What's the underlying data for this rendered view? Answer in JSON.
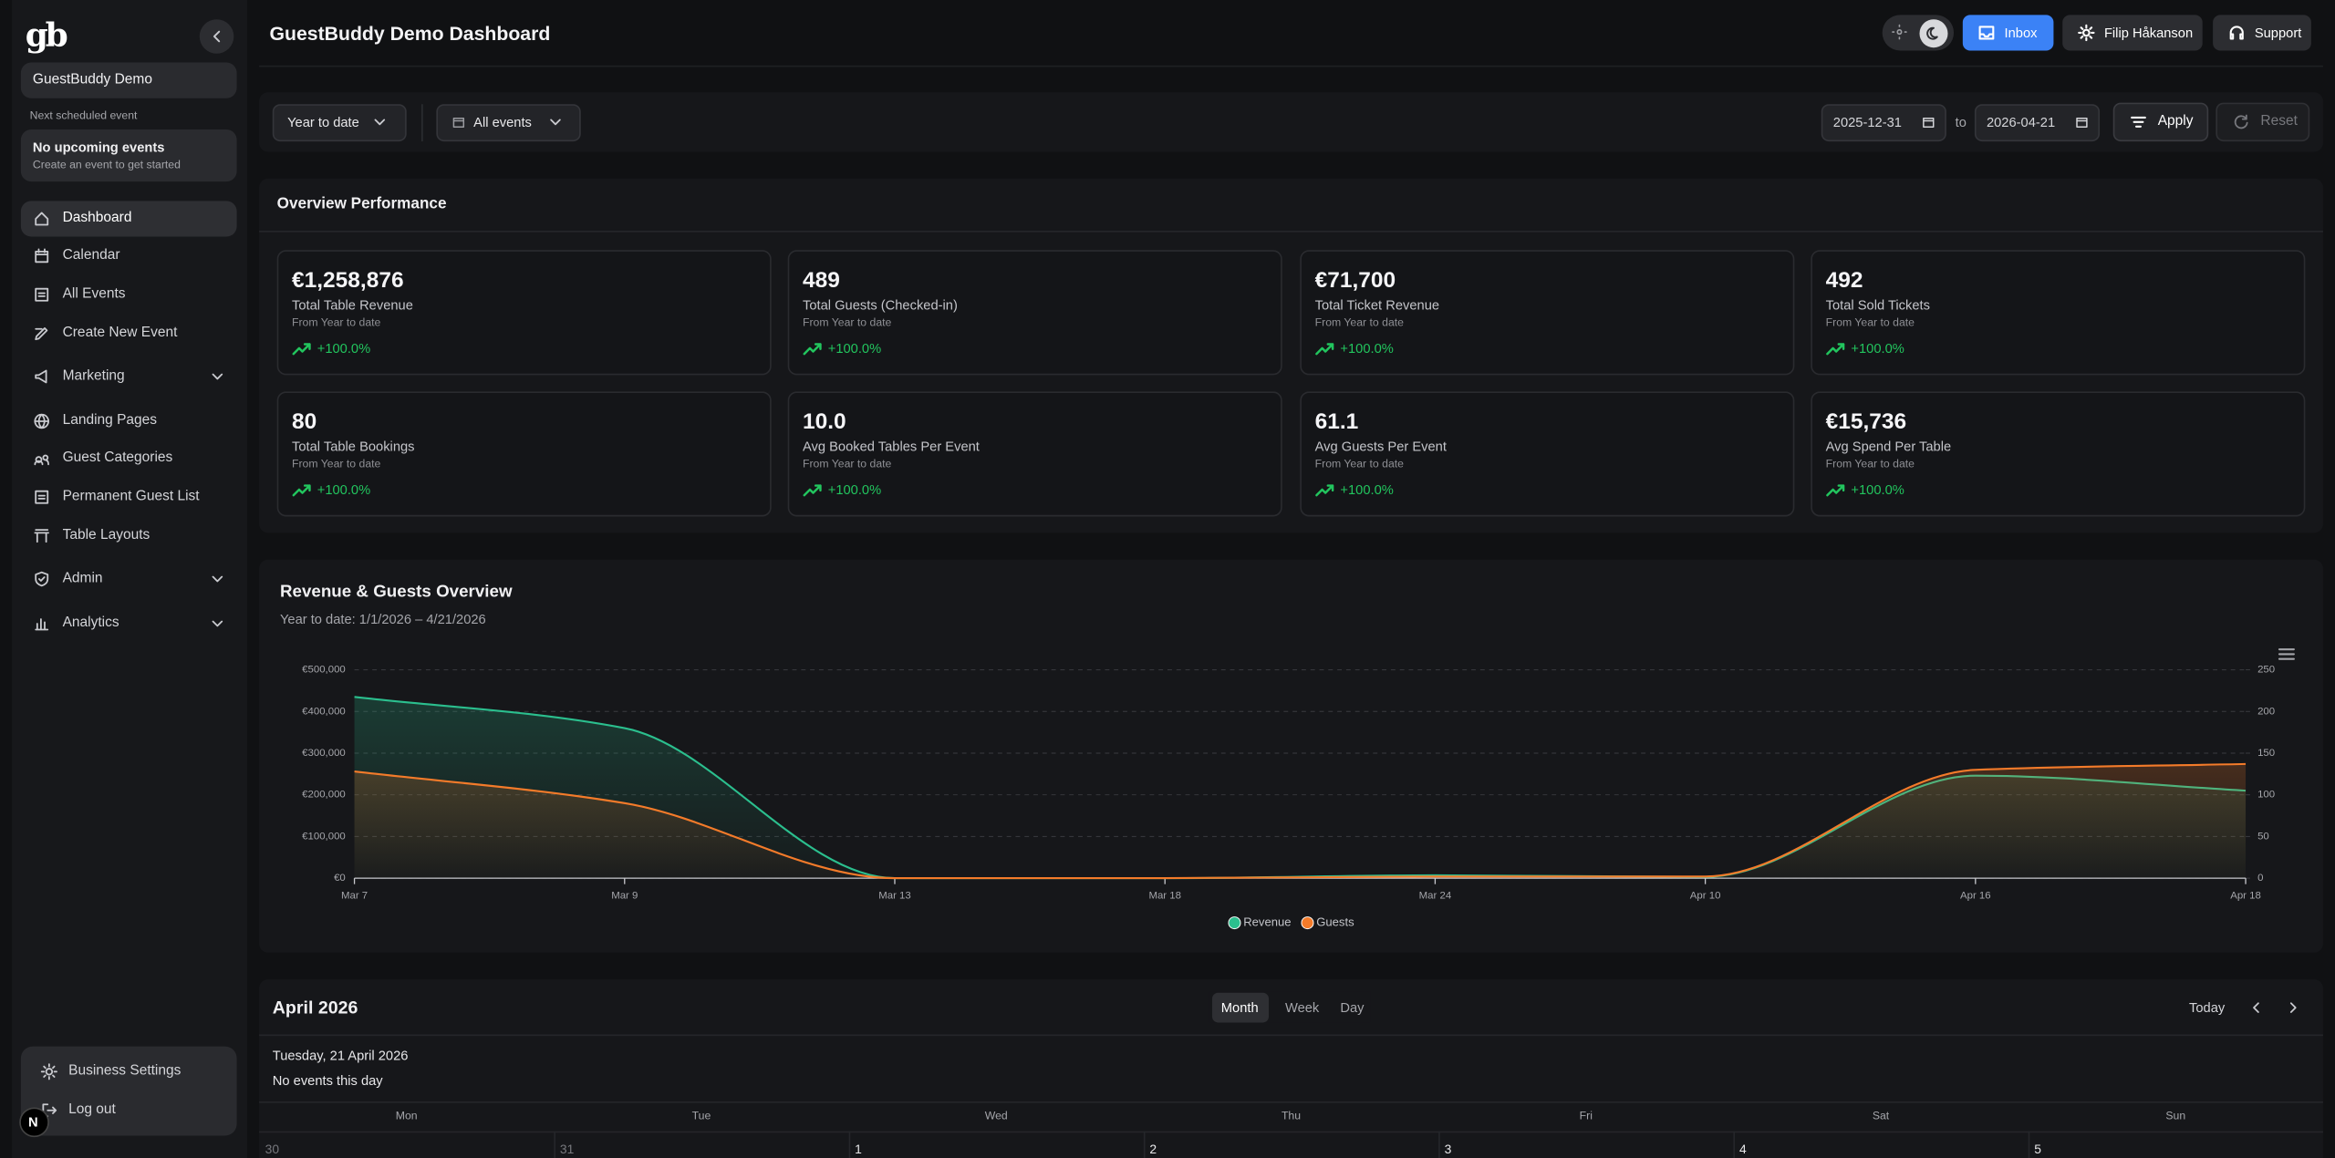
{
  "sidebar": {
    "logo": "gb",
    "brand": "GuestBuddy Demo",
    "next_label": "Next scheduled event",
    "next_title": "No upcoming events",
    "next_sub": "Create an event to get started",
    "nav": [
      "Dashboard",
      "Calendar",
      "All Events",
      "Create New Event",
      "Marketing",
      "Landing Pages",
      "Guest Categories",
      "Permanent Guest List",
      "Table Layouts",
      "Admin",
      "Analytics"
    ],
    "footer": [
      "Business Settings",
      "Log out"
    ],
    "avatar": "N"
  },
  "header": {
    "title": "GuestBuddy Demo Dashboard",
    "buttons": [
      "Inbox",
      "Filip Håkanson",
      "Support"
    ]
  },
  "filters": {
    "period": "Year to date",
    "events": "All events",
    "from": "2025-12-31",
    "to_label": "to",
    "to": "2026-04-21",
    "apply": "Apply",
    "reset": "Reset"
  },
  "overview": {
    "title": "Overview Performance",
    "cards": [
      {
        "value": "€1,258,876",
        "label": "Total Table Revenue",
        "sub": "From Year to date",
        "change": "+100.0%"
      },
      {
        "value": "489",
        "label": "Total Guests (Checked-in)",
        "sub": "From Year to date",
        "change": "+100.0%"
      },
      {
        "value": "€71,700",
        "label": "Total Ticket Revenue",
        "sub": "From Year to date",
        "change": "+100.0%"
      },
      {
        "value": "492",
        "label": "Total Sold Tickets",
        "sub": "From Year to date",
        "change": "+100.0%"
      },
      {
        "value": "80",
        "label": "Total Table Bookings",
        "sub": "From Year to date",
        "change": "+100.0%"
      },
      {
        "value": "10.0",
        "label": "Avg Booked Tables Per Event",
        "sub": "From Year to date",
        "change": "+100.0%"
      },
      {
        "value": "61.1",
        "label": "Avg Guests Per Event",
        "sub": "From Year to date",
        "change": "+100.0%"
      },
      {
        "value": "€15,736",
        "label": "Avg Spend Per Table",
        "sub": "From Year to date",
        "change": "+100.0%"
      }
    ]
  },
  "chart_data": {
    "type": "line",
    "title": "Revenue & Guests Overview",
    "subtitle": "Year to date: 1/1/2026 – 4/21/2026",
    "categories": [
      "Mar 7",
      "Mar 9",
      "Mar 13",
      "Mar 18",
      "Mar 24",
      "Apr 10",
      "Apr 16",
      "Apr 18"
    ],
    "series": [
      {
        "name": "Revenue",
        "color": "#2bbf8e",
        "values": [
          435000,
          360000,
          0,
          0,
          7000,
          3000,
          246000,
          210000
        ]
      },
      {
        "name": "Guests",
        "color": "#f47b2a",
        "axis": "y2",
        "values": [
          128,
          90,
          0,
          0,
          2,
          2,
          130,
          137
        ]
      }
    ],
    "ylim": [
      0,
      500000
    ],
    "yticks": [
      {
        "value": 0,
        "label": "€0"
      },
      {
        "value": 100000,
        "label": "€100,000"
      },
      {
        "value": 200000,
        "label": "€200,000"
      },
      {
        "value": 300000,
        "label": "€300,000"
      },
      {
        "value": 400000,
        "label": "€400,000"
      },
      {
        "value": 500000,
        "label": "€500,000"
      }
    ],
    "y2lim": [
      0,
      250
    ],
    "y2ticks": [
      0,
      50,
      100,
      150,
      200,
      250
    ],
    "grid": true,
    "legend": "bottom"
  },
  "calendar": {
    "title": "April 2026",
    "views": [
      "Month",
      "Week",
      "Day"
    ],
    "today": "Today",
    "date": "Tuesday, 21 April 2026",
    "empty": "No events this day",
    "weekdays": [
      "Mon",
      "Tue",
      "Wed",
      "Thu",
      "Fri",
      "Sat",
      "Sun"
    ],
    "days": [
      "30",
      "31",
      "1",
      "2",
      "3",
      "4",
      "5"
    ]
  }
}
